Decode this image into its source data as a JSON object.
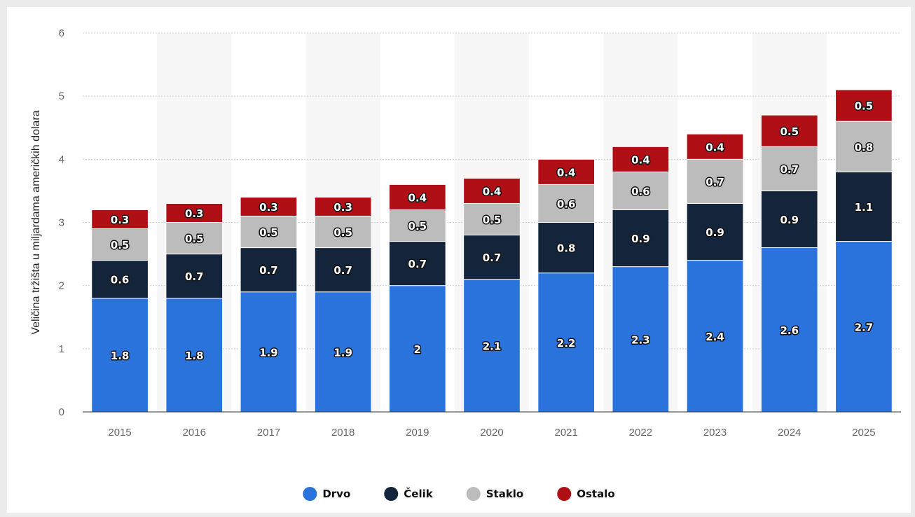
{
  "chart_data": {
    "type": "bar",
    "stacked": true,
    "categories": [
      "2015",
      "2016",
      "2017",
      "2018",
      "2019",
      "2020",
      "2021",
      "2022",
      "2023",
      "2024",
      "2025"
    ],
    "series": [
      {
        "name": "Drvo",
        "color": "#2a73dc",
        "values": [
          1.8,
          1.8,
          1.9,
          1.9,
          2,
          2.1,
          2.2,
          2.3,
          2.4,
          2.6,
          2.7
        ]
      },
      {
        "name": "Čelik",
        "color": "#13243b",
        "values": [
          0.6,
          0.7,
          0.7,
          0.7,
          0.7,
          0.7,
          0.8,
          0.9,
          0.9,
          0.9,
          1.1
        ]
      },
      {
        "name": "Staklo",
        "color": "#bcbcbc",
        "values": [
          0.5,
          0.5,
          0.5,
          0.5,
          0.5,
          0.5,
          0.6,
          0.6,
          0.7,
          0.7,
          0.8
        ]
      },
      {
        "name": "Ostalo",
        "color": "#b01015",
        "values": [
          0.3,
          0.3,
          0.3,
          0.3,
          0.4,
          0.4,
          0.4,
          0.4,
          0.4,
          0.5,
          0.5
        ]
      }
    ],
    "ylabel": "Veličina tržišta u miljardama američkih dolara",
    "xlabel": "",
    "ylim": [
      0,
      6
    ],
    "yticks": [
      0,
      1,
      2,
      3,
      4,
      5,
      6
    ],
    "grid": true,
    "legend_position": "bottom-center"
  }
}
